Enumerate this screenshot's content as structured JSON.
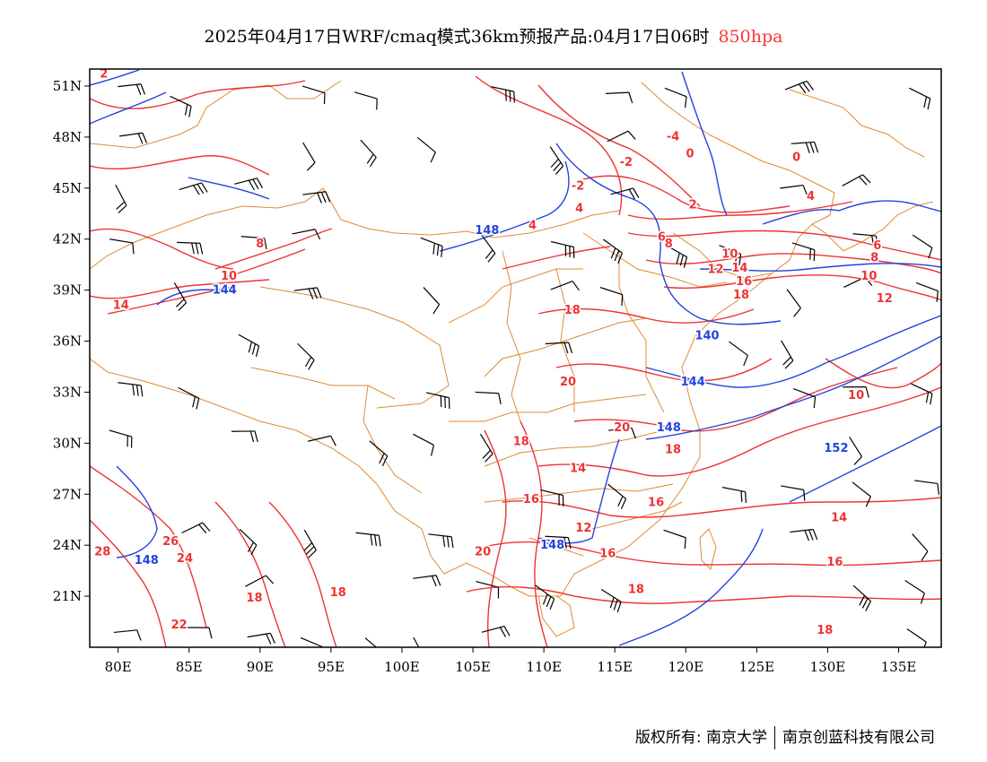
{
  "title": {
    "main": "2025年04月17日WRF/cmaq模式36km预报产品:04月17日06时",
    "level": "850hpa"
  },
  "colors": {
    "temperature_contour": "#ee3333",
    "height_contour": "#2244dd",
    "boundary": "#e08a33",
    "wind_barb": "#000000",
    "level_text": "#ff3333"
  },
  "map": {
    "lon_range": [
      78,
      138
    ],
    "lat_range": [
      18,
      52
    ],
    "lon_ticks": [
      "80E",
      "85E",
      "90E",
      "95E",
      "100E",
      "105E",
      "110E",
      "115E",
      "120E",
      "125E",
      "130E",
      "135E"
    ],
    "lat_ticks": [
      "21N",
      "24N",
      "27N",
      "30N",
      "33N",
      "36N",
      "39N",
      "42N",
      "45N",
      "48N",
      "51N"
    ]
  },
  "contour_labels": {
    "temperature": [
      {
        "text": "2",
        "lon": 79,
        "lat": 51.5
      },
      {
        "text": "-4",
        "lon": 119.1,
        "lat": 47.8
      },
      {
        "text": "0",
        "lon": 120.3,
        "lat": 46.8
      },
      {
        "text": "0",
        "lon": 127.8,
        "lat": 46.6
      },
      {
        "text": "-2",
        "lon": 115.8,
        "lat": 46.3
      },
      {
        "text": "-2",
        "lon": 112.4,
        "lat": 44.9
      },
      {
        "text": "4",
        "lon": 112.5,
        "lat": 43.6
      },
      {
        "text": "4",
        "lon": 109.2,
        "lat": 42.6
      },
      {
        "text": "2",
        "lon": 120.5,
        "lat": 43.8
      },
      {
        "text": "4",
        "lon": 128.8,
        "lat": 44.3
      },
      {
        "text": "6",
        "lon": 118.3,
        "lat": 41.9
      },
      {
        "text": "8",
        "lon": 118.8,
        "lat": 41.5
      },
      {
        "text": "6",
        "lon": 133.5,
        "lat": 41.4
      },
      {
        "text": "8",
        "lon": 133.3,
        "lat": 40.7
      },
      {
        "text": "8",
        "lon": 90.0,
        "lat": 41.5
      },
      {
        "text": "10",
        "lon": 87.8,
        "lat": 39.6
      },
      {
        "text": "10",
        "lon": 123.1,
        "lat": 40.9
      },
      {
        "text": "12",
        "lon": 122.1,
        "lat": 40.0
      },
      {
        "text": "14",
        "lon": 123.8,
        "lat": 40.1
      },
      {
        "text": "16",
        "lon": 124.1,
        "lat": 39.3
      },
      {
        "text": "18",
        "lon": 123.9,
        "lat": 38.5
      },
      {
        "text": "10",
        "lon": 132.9,
        "lat": 39.6
      },
      {
        "text": "12",
        "lon": 134.0,
        "lat": 38.3
      },
      {
        "text": "14",
        "lon": 80.2,
        "lat": 37.9
      },
      {
        "text": "18",
        "lon": 112.0,
        "lat": 37.6
      },
      {
        "text": "20",
        "lon": 111.7,
        "lat": 33.4
      },
      {
        "text": "10",
        "lon": 132.0,
        "lat": 32.6
      },
      {
        "text": "20",
        "lon": 115.5,
        "lat": 30.7
      },
      {
        "text": "18",
        "lon": 108.4,
        "lat": 29.9
      },
      {
        "text": "18",
        "lon": 119.1,
        "lat": 29.4
      },
      {
        "text": "14",
        "lon": 112.4,
        "lat": 28.3
      },
      {
        "text": "16",
        "lon": 109.1,
        "lat": 26.5
      },
      {
        "text": "16",
        "lon": 117.9,
        "lat": 26.3
      },
      {
        "text": "12",
        "lon": 112.8,
        "lat": 24.8
      },
      {
        "text": "14",
        "lon": 130.8,
        "lat": 25.4
      },
      {
        "text": "26",
        "lon": 83.7,
        "lat": 24.0
      },
      {
        "text": "28",
        "lon": 78.9,
        "lat": 23.4
      },
      {
        "text": "24",
        "lon": 84.7,
        "lat": 23.0
      },
      {
        "text": "20",
        "lon": 105.7,
        "lat": 23.4
      },
      {
        "text": "16",
        "lon": 114.5,
        "lat": 23.3
      },
      {
        "text": "16",
        "lon": 130.5,
        "lat": 22.8
      },
      {
        "text": "18",
        "lon": 116.5,
        "lat": 21.2
      },
      {
        "text": "18",
        "lon": 89.6,
        "lat": 20.7
      },
      {
        "text": "18",
        "lon": 95.5,
        "lat": 21.0
      },
      {
        "text": "22",
        "lon": 84.3,
        "lat": 19.1
      },
      {
        "text": "18",
        "lon": 129.8,
        "lat": 18.8
      }
    ],
    "height": [
      {
        "text": "148",
        "lon": 106.0,
        "lat": 42.3
      },
      {
        "text": "144",
        "lon": 87.5,
        "lat": 38.8
      },
      {
        "text": "140",
        "lon": 121.5,
        "lat": 36.1
      },
      {
        "text": "144",
        "lon": 120.5,
        "lat": 33.4
      },
      {
        "text": "148",
        "lon": 118.8,
        "lat": 30.7
      },
      {
        "text": "152",
        "lon": 130.6,
        "lat": 29.5
      },
      {
        "text": "148",
        "lon": 82.0,
        "lat": 22.9
      },
      {
        "text": "148",
        "lon": 110.6,
        "lat": 23.8
      }
    ]
  },
  "footer": {
    "copyright": "版权所有: 南京大学",
    "company": "南京创蓝科技有限公司"
  }
}
